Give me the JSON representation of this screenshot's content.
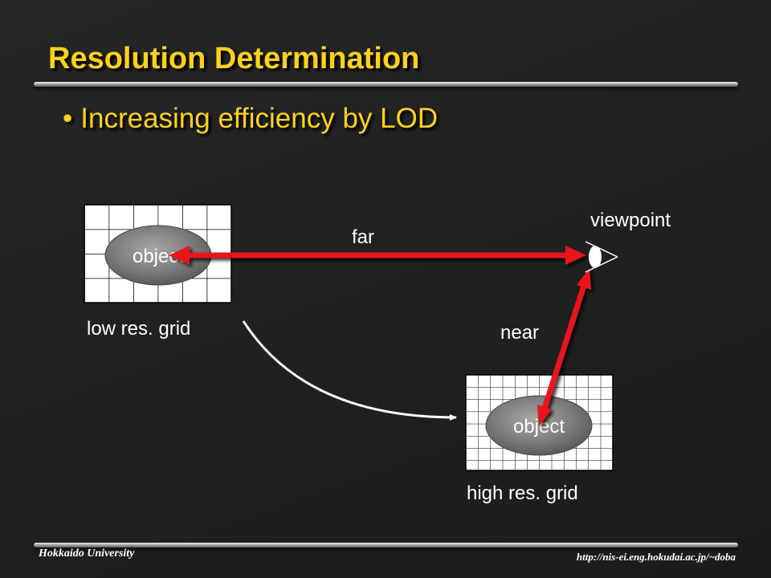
{
  "slide": {
    "title": "Resolution Determination",
    "bullet": "Increasing efficiency by LOD"
  },
  "diagram": {
    "low_res": {
      "object_label": "object",
      "grid_label": "low res. grid"
    },
    "high_res": {
      "object_label": "object",
      "grid_label": "high res. grid"
    },
    "viewpoint_label": "viewpoint",
    "far_label": "far",
    "near_label": "near"
  },
  "footer": {
    "left": "Hokkaido University",
    "right": "http://nis-ei.eng.hokudai.ac.jp/~doba"
  },
  "colors": {
    "title": "#ffd21a",
    "arrow": "#e8141c",
    "grid_fill": "#ffffff",
    "grid_lines": "#000000",
    "object_fill": "#7a7a7a",
    "label_text": "#ffffff"
  }
}
